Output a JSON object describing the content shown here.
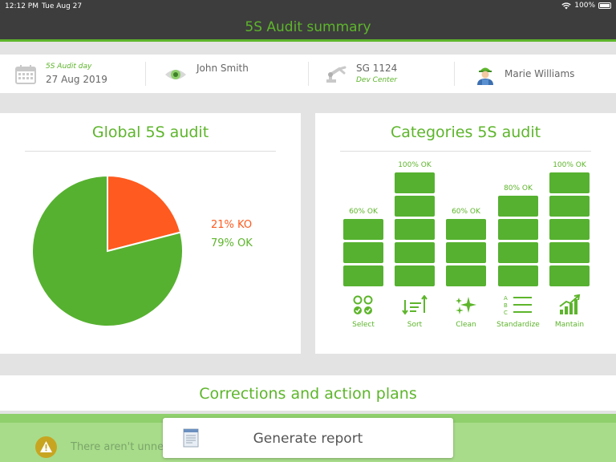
{
  "status_bar": {
    "time": "12:12 PM",
    "date": "Tue Aug 27",
    "battery": "100%"
  },
  "header": {
    "title": "5S Audit summary"
  },
  "info": {
    "audit_day_label": "5S Audit day",
    "audit_date": "27 Aug 2019",
    "auditor": "John Smith",
    "machine_id": "SG 1124",
    "machine_location": "Dev Center",
    "operator": "Marie Williams"
  },
  "global_card": {
    "title": "Global 5S audit",
    "ko_label": "21% KO",
    "ok_label": "79% OK"
  },
  "categories_card": {
    "title": "Categories 5S audit"
  },
  "chart_data": [
    {
      "type": "pie",
      "title": "Global 5S audit",
      "labels": [
        "KO",
        "OK"
      ],
      "values": [
        21,
        79
      ],
      "colors": [
        "#ff5a1f",
        "#56b130"
      ]
    },
    {
      "type": "bar",
      "title": "Categories 5S audit",
      "categories": [
        "Select",
        "Sort",
        "Clean",
        "Standardize",
        "Mantain"
      ],
      "values": [
        60,
        100,
        60,
        80,
        100
      ],
      "value_labels": [
        "60% OK",
        "100% OK",
        "60% OK",
        "80% OK",
        "100% OK"
      ],
      "unit": "% OK",
      "ylim": [
        0,
        100
      ],
      "block_step": 20
    }
  ],
  "corrections": {
    "title": "Corrections and action plans"
  },
  "footer": {
    "warning_text": "There aren't unne",
    "generate_label": "Generate report"
  },
  "colors": {
    "accent": "#5db52b",
    "ko": "#ff5a1f",
    "bar": "#56b130",
    "dark": "#3d3d3d"
  }
}
